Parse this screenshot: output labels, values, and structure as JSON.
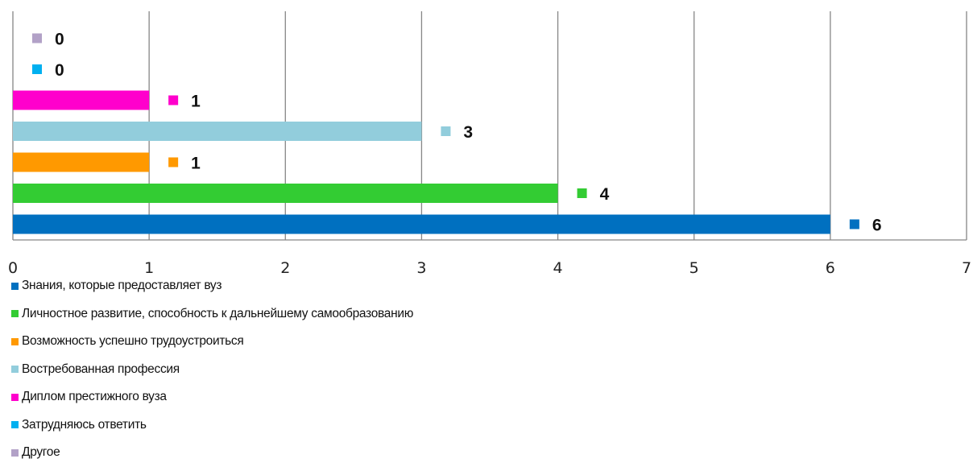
{
  "chart_data": {
    "type": "bar",
    "orientation": "horizontal",
    "title": "",
    "xlabel": "",
    "ylabel": "",
    "xlim": [
      0,
      7
    ],
    "x_ticks": [
      "0",
      "1",
      "2",
      "3",
      "4",
      "5",
      "6",
      "7"
    ],
    "grid": "vertical",
    "legend_position": "bottom-left",
    "series": [
      {
        "name": "Знания, которые предоставляет вуз",
        "value": 6,
        "label": "6",
        "color": "#0070C0"
      },
      {
        "name": "Личностное развитие, способность к дальнейшему самообразованию",
        "value": 4,
        "label": "4",
        "color": "#33CC33"
      },
      {
        "name": "Возможность успешно трудоустроиться",
        "value": 1,
        "label": "1",
        "color": "#FF9900"
      },
      {
        "name": "Востребованная профессия",
        "value": 3,
        "label": "3",
        "color": "#92CDDC"
      },
      {
        "name": "Диплом престижного вуза",
        "value": 1,
        "label": "1",
        "color": "#FF00CC"
      },
      {
        "name": "Затрудняюсь ответить",
        "value": 0,
        "label": "0",
        "color": "#00B0F0"
      },
      {
        "name": "Другое",
        "value": 0,
        "label": "0",
        "color": "#B2A1C7"
      }
    ]
  }
}
